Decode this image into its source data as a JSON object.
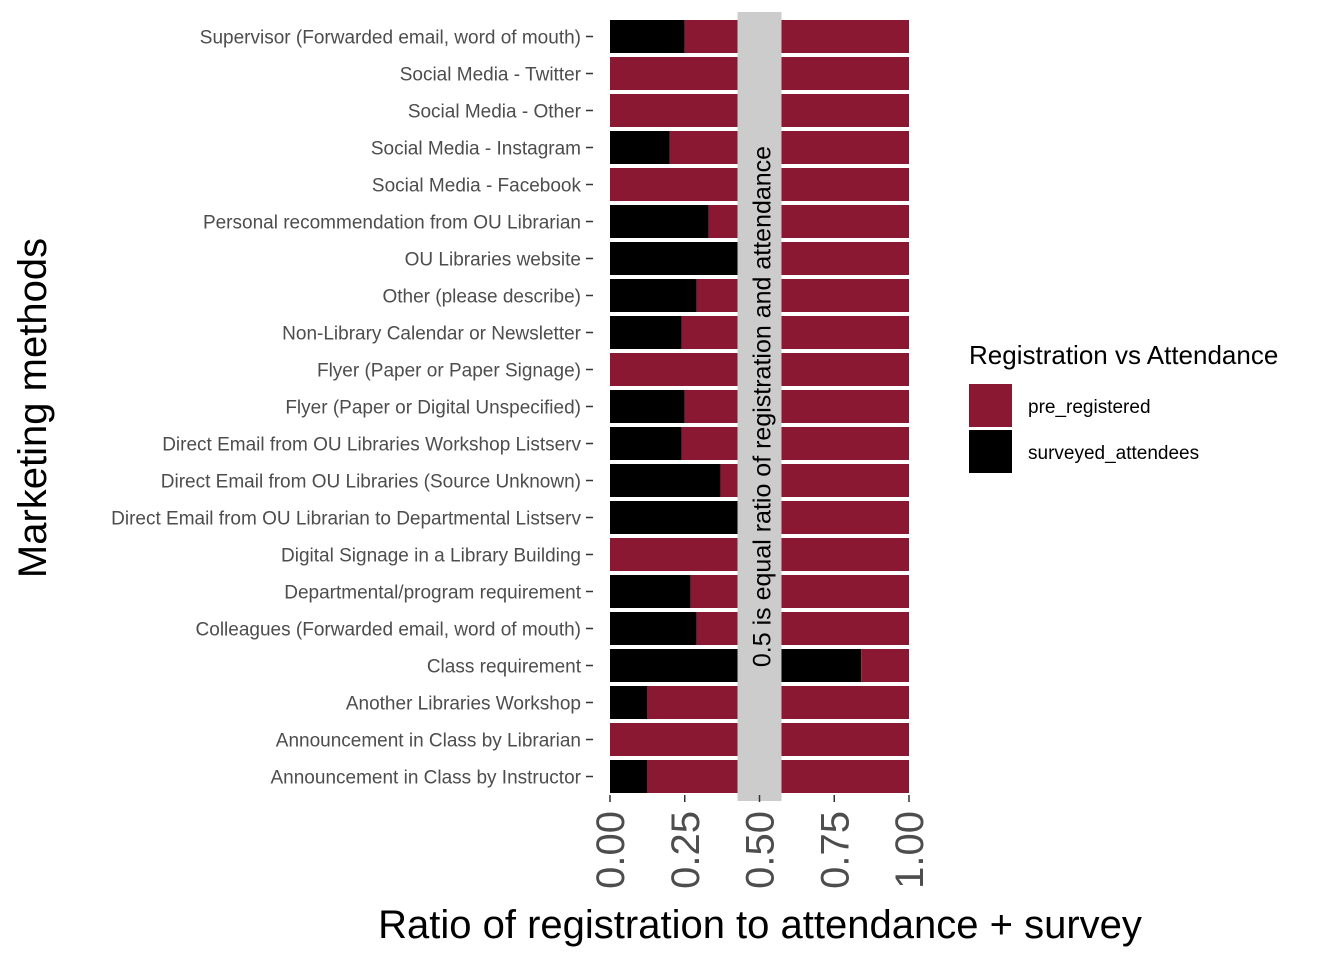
{
  "chart_data": {
    "type": "bar",
    "orientation": "horizontal",
    "stacked": true,
    "xlabel": "Ratio of registration to attendance + survey",
    "ylabel": "Marketing methods",
    "xlim": [
      0,
      1
    ],
    "x_ticks": [
      "0.00",
      "0.25",
      "0.50",
      "0.75",
      "1.00"
    ],
    "x_tick_values": [
      0,
      0.25,
      0.5,
      0.75,
      1.0
    ],
    "categories": [
      "Supervisor (Forwarded email, word of mouth)",
      "Social Media - Twitter",
      "Social Media - Other",
      "Social Media - Instagram",
      "Social Media - Facebook",
      "Personal recommendation from OU Librarian",
      "OU Libraries website",
      "Other (please describe)",
      "Non-Library Calendar or Newsletter",
      "Flyer (Paper or Paper Signage)",
      "Flyer (Paper or Digital Unspecified)",
      "Direct Email from OU Libraries Workshop Listserv",
      "Direct Email from OU Libraries (Source Unknown)",
      "Direct Email from OU Librarian to Departmental Listserv",
      "Digital Signage in a Library Building",
      "Departmental/program requirement",
      "Colleagues (Forwarded email, word of mouth)",
      "Class requirement",
      "Another Libraries Workshop",
      "Announcement in Class by Librarian",
      "Announcement in Class by Instructor"
    ],
    "series": [
      {
        "name": "surveyed_attendees",
        "color": "#000000",
        "values": [
          0.25,
          0,
          0,
          0.2,
          0,
          0.33,
          0.5,
          0.29,
          0.24,
          0,
          0.25,
          0.24,
          0.37,
          0.5,
          0,
          0.27,
          0.29,
          0.84,
          0.125,
          0,
          0.125
        ]
      },
      {
        "name": "pre_registered",
        "color": "#8b1832",
        "values": [
          0.75,
          1,
          1,
          0.8,
          1,
          0.67,
          0.5,
          0.71,
          0.76,
          1,
          0.75,
          0.76,
          0.63,
          0.5,
          1,
          0.73,
          0.71,
          0.16,
          0.875,
          1,
          0.875
        ]
      }
    ],
    "reference_line": {
      "x": 0.5,
      "color": "#cccccc",
      "label": "0.5 is equal ratio of registration and attendance"
    },
    "legend": {
      "title": "Registration vs Attendance",
      "position": "right",
      "items": [
        {
          "label": "pre_registered",
          "color": "#8b1832"
        },
        {
          "label": "surveyed_attendees",
          "color": "#000000"
        }
      ]
    },
    "grid": false
  }
}
